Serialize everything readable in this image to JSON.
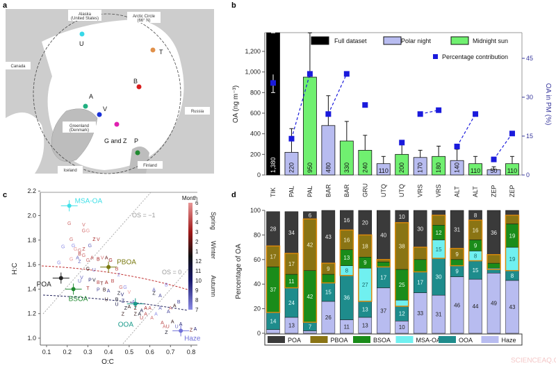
{
  "panel_labels": {
    "a": "a",
    "b": "b",
    "c": "c",
    "d": "d"
  },
  "watermark": "SCIENCEAQ.COM",
  "map": {
    "labels": {
      "alaska": "Alaska",
      "alaska2": "(United States)",
      "arctic": "Arctic Circle",
      "arctic2": "(66° N)",
      "canada": "Canada",
      "greenland": "Greenland",
      "greenland2": "(Denmark)",
      "russia": "Russia",
      "iceland": "Iceland",
      "finland": "Finland"
    },
    "sites": [
      {
        "label": "U",
        "color": "#38d8e8"
      },
      {
        "label": "T",
        "color": "#e0904a"
      },
      {
        "label": "B",
        "color": "#d81c1c"
      },
      {
        "label": "A",
        "color": "#20b080"
      },
      {
        "label": "V",
        "color": "#1830d8"
      },
      {
        "label": "G and Z",
        "color": "#e020b0"
      },
      {
        "label": "P",
        "color": "#208a30"
      }
    ]
  },
  "chart_data": [
    {
      "panel": "b",
      "type": "bar",
      "ylabel": "OA (ng m⁻³)",
      "y2label": "OA in PM (%)",
      "ylim": [
        0,
        1380
      ],
      "yticks": [
        "0",
        "200",
        "400",
        "600",
        "800",
        "1,000",
        "1,200"
      ],
      "y2lim": [
        0,
        45
      ],
      "y2ticks": [
        "0",
        "15",
        "30",
        "45"
      ],
      "categories": [
        "TIK",
        "PAL",
        "PAL",
        "BAR",
        "BAR",
        "GRU",
        "UTQ",
        "UTQ",
        "VRS",
        "VRS",
        "ALT",
        "ALT",
        "ZEP",
        "ZEP"
      ],
      "values": [
        1380,
        220,
        950,
        480,
        330,
        240,
        110,
        200,
        170,
        180,
        140,
        110,
        50,
        110
      ],
      "value_labels": [
        "1,380",
        "220",
        "950",
        "480",
        "330",
        "240",
        "110",
        "200",
        "170",
        "180",
        "140",
        "110",
        "50",
        "110"
      ],
      "period": [
        "full",
        "night",
        "sun",
        "night",
        "sun",
        "sun",
        "night",
        "sun",
        "night",
        "sun",
        "night",
        "sun",
        "night",
        "sun"
      ],
      "error_upper": [
        1380,
        450,
        1380,
        770,
        520,
        385,
        180,
        300,
        240,
        280,
        250,
        180,
        80,
        180
      ],
      "error_lower_full": 800,
      "percentage": [
        35.5,
        14,
        39,
        23.5,
        39,
        27,
        null,
        12.5,
        23.5,
        25,
        11,
        23.5,
        6,
        16
      ],
      "percentage_links": [
        [
          1,
          2
        ],
        [
          3,
          4
        ],
        [
          8,
          9
        ],
        [
          10,
          11
        ],
        [
          12,
          13
        ]
      ],
      "legend": [
        {
          "name": "Full dataset",
          "color": "#000000"
        },
        {
          "name": "Polar night",
          "color": "#b8bcf0"
        },
        {
          "name": "Midnight sun",
          "color": "#70f070"
        },
        {
          "name": "Percentage contribution",
          "color": "#1a1adc"
        }
      ],
      "y2color": "#33339a"
    },
    {
      "panel": "c",
      "type": "scatter",
      "xlabel": "O:C",
      "ylabel": "H:C",
      "xlim": [
        0.1,
        0.8
      ],
      "ylim": [
        1.0,
        2.2
      ],
      "xticks": [
        "0.1",
        "0.2",
        "0.3",
        "0.4",
        "0.5",
        "0.6",
        "0.7",
        "0.8"
      ],
      "yticks": [
        "1.0",
        "1.2",
        "1.4",
        "1.6",
        "1.8",
        "2.0",
        "2.2"
      ],
      "colorbar": {
        "title": "Month",
        "ticks": [
          "6",
          "5",
          "4",
          "3",
          "2",
          "1",
          "12",
          "11",
          "10",
          "9",
          "8",
          "7"
        ],
        "seasons": [
          "Spring",
          "Winter",
          "Autumn"
        ]
      },
      "os_labels": [
        "OS = −1",
        "OS = 0"
      ],
      "factors": [
        {
          "name": "MSA-OA",
          "oc": 0.21,
          "hc": 2.08,
          "color": "#40e0e8"
        },
        {
          "name": "PBOA",
          "oc": 0.4,
          "hc": 1.58,
          "color": "#7a7a10"
        },
        {
          "name": "POA",
          "oc": 0.17,
          "hc": 1.49,
          "color": "#222222"
        },
        {
          "name": "BSOA",
          "oc": 0.23,
          "hc": 1.4,
          "color": "#208a30"
        },
        {
          "name": "OOA",
          "oc": 0.53,
          "hc": 1.28,
          "color": "#1a9a8a"
        },
        {
          "name": "Haze",
          "oc": 0.75,
          "hc": 1.06,
          "color": "#7070d8"
        }
      ],
      "points": [
        [
          "G",
          0.21,
          1.94,
          5
        ],
        [
          "V",
          0.28,
          1.93,
          5
        ],
        [
          "G",
          0.28,
          1.88,
          5
        ],
        [
          "G",
          0.3,
          1.88,
          6
        ],
        [
          "G",
          0.22,
          1.81,
          5
        ],
        [
          "Z",
          0.33,
          1.81,
          3
        ],
        [
          "V",
          0.35,
          1.81,
          4
        ],
        [
          "G",
          0.18,
          1.75,
          7
        ],
        [
          "G",
          0.23,
          1.76,
          7
        ],
        [
          "G",
          0.24,
          1.73,
          6
        ],
        [
          "G",
          0.26,
          1.72,
          5
        ],
        [
          "Z",
          0.28,
          1.73,
          4
        ],
        [
          "G",
          0.31,
          1.76,
          8
        ],
        [
          "A",
          0.25,
          1.66,
          8
        ],
        [
          "B",
          0.26,
          1.68,
          4
        ],
        [
          "G",
          0.28,
          1.68,
          5
        ],
        [
          "G",
          0.22,
          1.65,
          6
        ],
        [
          "Z",
          0.26,
          1.64,
          8
        ],
        [
          "G",
          0.3,
          1.64,
          5
        ],
        [
          "A",
          0.32,
          1.66,
          4
        ],
        [
          "B",
          0.35,
          1.65,
          3
        ],
        [
          "V",
          0.37,
          1.66,
          5
        ],
        [
          "A",
          0.39,
          1.66,
          2
        ],
        [
          "G",
          0.41,
          1.64,
          3
        ],
        [
          "G",
          0.16,
          1.62,
          7
        ],
        [
          "G",
          0.3,
          1.57,
          1
        ],
        [
          "U",
          0.33,
          1.56,
          8
        ],
        [
          "B",
          0.44,
          1.57,
          4
        ],
        [
          "Z",
          0.45,
          1.52,
          7
        ],
        [
          "V",
          0.27,
          1.5,
          8
        ],
        [
          "U",
          0.26,
          1.47,
          8
        ],
        [
          "V",
          0.33,
          1.48,
          12
        ],
        [
          "P",
          0.31,
          1.48,
          10
        ],
        [
          "B",
          0.35,
          1.46,
          4
        ],
        [
          "T",
          0.36,
          1.45,
          2
        ],
        [
          "A",
          0.39,
          1.46,
          3
        ],
        [
          "B",
          0.42,
          1.47,
          4
        ],
        [
          "G",
          0.46,
          1.42,
          5
        ],
        [
          "G",
          0.48,
          1.42,
          7
        ],
        [
          "V",
          0.5,
          1.38,
          6
        ],
        [
          "T",
          0.3,
          1.41,
          3
        ],
        [
          "P",
          0.35,
          1.4,
          9
        ],
        [
          "B",
          0.38,
          1.4,
          1
        ],
        [
          "A",
          0.4,
          1.39,
          9
        ],
        [
          "Z",
          0.45,
          1.37,
          12
        ],
        [
          "V",
          0.46,
          1.36,
          10
        ],
        [
          "A",
          0.62,
          1.4,
          8
        ],
        [
          "Z",
          0.62,
          1.37,
          12
        ],
        [
          "A",
          0.65,
          1.35,
          9
        ],
        [
          "U",
          0.39,
          1.32,
          1
        ],
        [
          "B",
          0.44,
          1.32,
          12
        ],
        [
          "Z",
          0.47,
          1.31,
          10
        ],
        [
          "A",
          0.52,
          1.3,
          8
        ],
        [
          "U",
          0.44,
          1.28,
          11
        ],
        [
          "A",
          0.5,
          1.26,
          1
        ],
        [
          "Z",
          0.53,
          1.25,
          3
        ],
        [
          "A",
          0.56,
          1.23,
          11
        ],
        [
          "A",
          0.58,
          1.25,
          3
        ],
        [
          "A",
          0.6,
          1.25,
          4
        ],
        [
          "B",
          0.74,
          1.3,
          9
        ],
        [
          "A",
          0.7,
          1.25,
          5
        ],
        [
          "A",
          0.72,
          1.27,
          1
        ],
        [
          "A",
          0.65,
          1.25,
          8
        ],
        [
          "A",
          0.69,
          1.22,
          9
        ],
        [
          "Z",
          0.47,
          1.2,
          1
        ],
        [
          "A",
          0.55,
          1.2,
          12
        ],
        [
          "A",
          0.58,
          1.2,
          4
        ],
        [
          "U",
          0.56,
          1.17,
          4
        ],
        [
          "A",
          0.61,
          1.17,
          5
        ],
        [
          "A",
          0.66,
          1.13,
          4
        ],
        [
          "A",
          0.71,
          1.14,
          1
        ],
        [
          "A",
          0.67,
          1.1,
          5
        ],
        [
          "U",
          0.68,
          1.1,
          4
        ],
        [
          "U",
          0.73,
          1.1,
          8
        ],
        [
          "A",
          0.75,
          1.12,
          10
        ],
        [
          "Z",
          0.68,
          1.05,
          12
        ],
        [
          "Z",
          0.8,
          1.07,
          2
        ],
        [
          "A",
          0.82,
          1.08,
          10
        ],
        [
          "B",
          0.68,
          1.44,
          7
        ],
        [
          "Z",
          0.53,
          1.2,
          1
        ],
        [
          "Z",
          0.49,
          1.25,
          12
        ],
        [
          "A",
          0.63,
          1.2,
          7
        ]
      ]
    },
    {
      "panel": "d",
      "type": "bar",
      "stacked": true,
      "ylabel": "Percentage of OA",
      "ylim": [
        0,
        100
      ],
      "yticks": [
        "0",
        "20",
        "40",
        "60",
        "80",
        "100"
      ],
      "categories": [
        "TIK",
        "PAL",
        "PAL",
        "BAR",
        "BAR",
        "GRU",
        "UTQ",
        "UTQ",
        "VRS",
        "VRS",
        "ALT",
        "ALT",
        "ZEP",
        "ZEP"
      ],
      "series": [
        {
          "name": "Haze",
          "color": "#b8bcf0",
          "text": "#222",
          "values": [
            3,
            13,
            2,
            26,
            11,
            13,
            37,
            10,
            33,
            31,
            46,
            44,
            49,
            43
          ],
          "labels": [
            "",
            "13",
            "",
            "26",
            "11",
            "13",
            "37",
            "10",
            "33",
            "31",
            "46",
            "44",
            "49",
            "43"
          ]
        },
        {
          "name": "OOA",
          "color": "#1e8c8c",
          "text": "#e8ffff",
          "values": [
            14,
            24,
            7,
            15,
            36,
            13,
            17,
            12,
            17,
            30,
            9,
            15,
            3,
            8
          ],
          "labels": [
            "14",
            "24",
            "7",
            "15",
            "36",
            "13",
            "17",
            "12",
            "17",
            "30",
            "9",
            "15",
            "",
            "8"
          ]
        },
        {
          "name": "MSA-OA",
          "color": "#70f0f0",
          "text": "#1a6a6a",
          "values": [
            0,
            0,
            0,
            0,
            8,
            27,
            0,
            5,
            0,
            15,
            0,
            8,
            1,
            19
          ],
          "labels": [
            "",
            "",
            "",
            "",
            "8",
            "27",
            "",
            "",
            "",
            "15",
            "",
            "8",
            "",
            "19"
          ]
        },
        {
          "name": "BSOA",
          "color": "#1a8c1a",
          "text": "#e8ffe8",
          "values": [
            37,
            11,
            42,
            7,
            13,
            9,
            4,
            25,
            10,
            12,
            5,
            9,
            4,
            19
          ],
          "labels": [
            "37",
            "11",
            "42",
            "",
            "13",
            "9",
            "",
            "25",
            "",
            "12",
            "",
            "9",
            "",
            "19"
          ]
        },
        {
          "name": "PBOA",
          "color": "#8a7414",
          "text": "#f4f0d0",
          "values": [
            17,
            17,
            42,
            9,
            16,
            18,
            2,
            38,
            10,
            8,
            9,
            16,
            7,
            7
          ],
          "labels": [
            "17",
            "17",
            "42",
            "9",
            "16",
            "18",
            "",
            "38",
            "",
            "",
            "9",
            "16",
            "",
            ""
          ]
        },
        {
          "name": "POA",
          "color": "#3a3a3a",
          "text": "#eeeeee",
          "values": [
            28,
            34,
            6,
            43,
            16,
            20,
            40,
            10,
            30,
            4,
            31,
            8,
            36,
            4
          ],
          "labels": [
            "28",
            "34",
            "6",
            "43",
            "16",
            "20",
            "40",
            "10",
            "30",
            "",
            "31",
            "8",
            "36",
            ""
          ]
        }
      ],
      "legend_order": [
        "POA",
        "PBOA",
        "BSOA",
        "MSA-OA",
        "OOA",
        "Haze"
      ],
      "biogenic_outline_color": "#d8880c"
    }
  ]
}
